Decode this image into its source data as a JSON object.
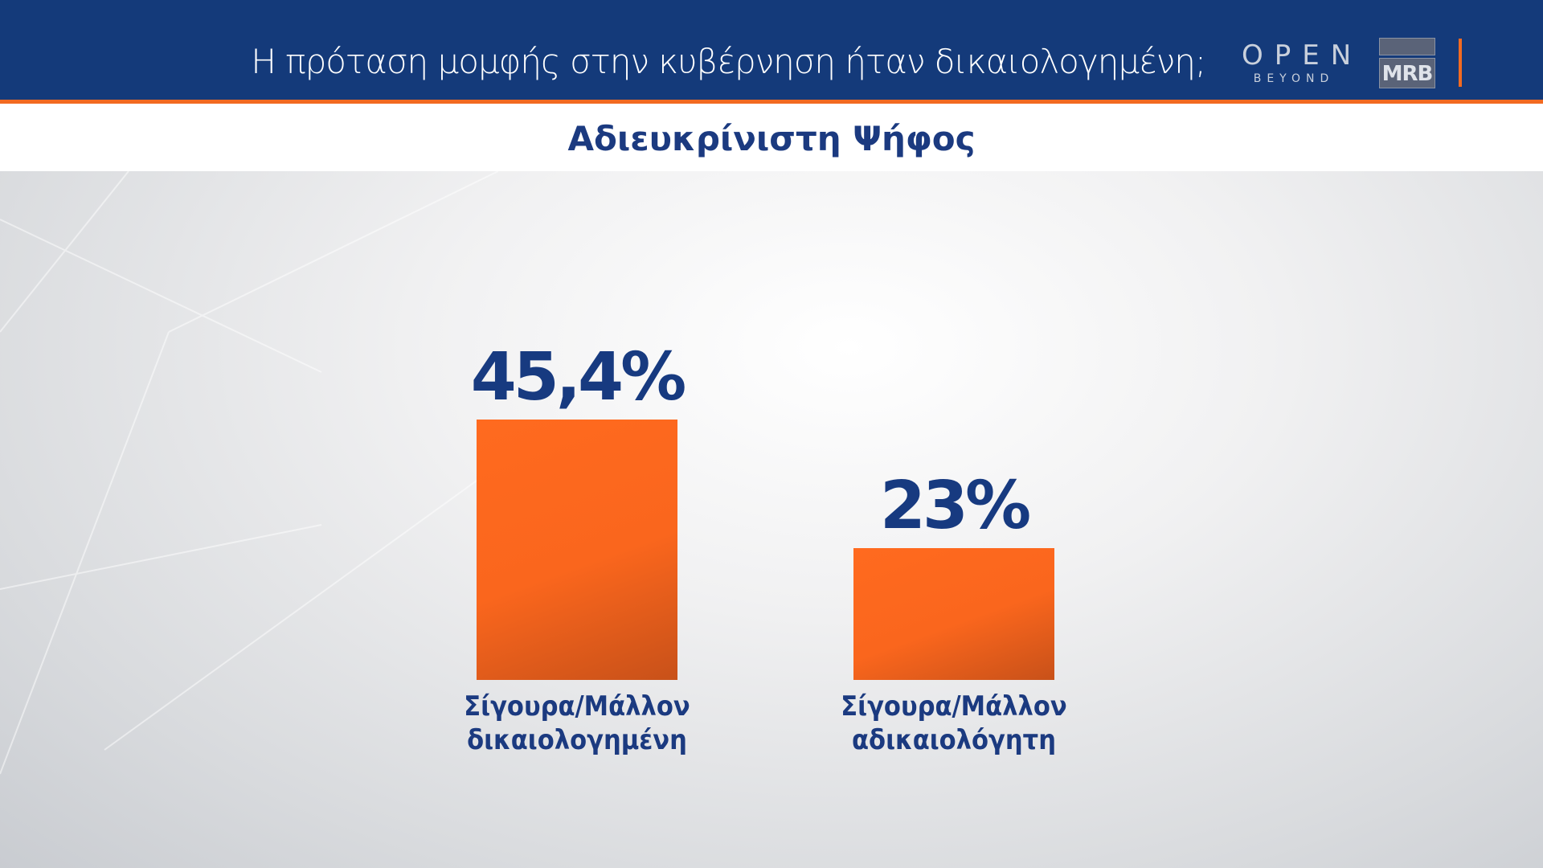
{
  "header": {
    "title": "Η πρόταση μομφής στην κυβέρνηση ήταν δικαιολογημένη;",
    "logo_open": "OPEN",
    "logo_open_sub": "BEYOND",
    "logo_mrb": "MRB"
  },
  "colors": {
    "header": "#143a7a",
    "accent": "#f26a21",
    "bar": "#fa661d",
    "text": "#1b3a80"
  },
  "chart_data": {
    "type": "bar",
    "title": "Αδιευκρίνιστη Ψήφος",
    "categories": [
      [
        "Σίγουρα/Μάλλον",
        "δικαιολογημένη"
      ],
      [
        "Σίγουρα/Μάλλον",
        "αδικαιολόγητη"
      ]
    ],
    "values": [
      45.4,
      23
    ],
    "value_labels": [
      "45,4%",
      "23%"
    ],
    "ylim": [
      0,
      100
    ],
    "grid": false
  }
}
